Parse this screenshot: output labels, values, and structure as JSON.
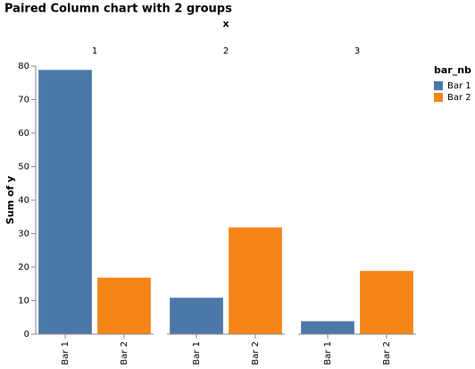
{
  "chart_data": {
    "type": "bar",
    "title": "Paired Column chart with 2 groups",
    "column_title": "x",
    "categories": [
      "1",
      "2",
      "3"
    ],
    "y_label": "Sum of y",
    "legend_title": "bar_nb",
    "series": [
      {
        "name": "Bar 1",
        "color": "#4c78a8",
        "values": [
          79,
          11,
          4
        ]
      },
      {
        "name": "Bar 2",
        "color": "#f58518",
        "values": [
          17,
          32,
          19
        ]
      }
    ],
    "ylim": [
      0,
      80
    ],
    "yticks": [
      0,
      10,
      20,
      30,
      40,
      50,
      60,
      70,
      80
    ],
    "grid": false,
    "legend": "right"
  }
}
